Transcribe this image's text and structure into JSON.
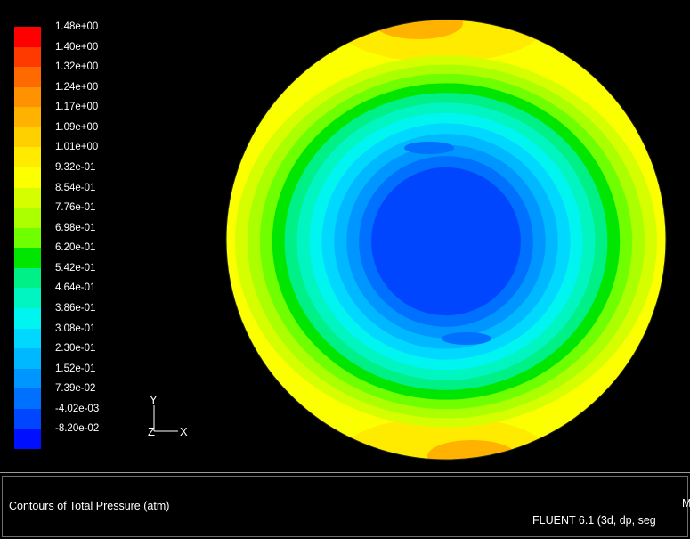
{
  "legend": {
    "labels": [
      "1.48e+00",
      "1.40e+00",
      "1.32e+00",
      "1.24e+00",
      "1.17e+00",
      "1.09e+00",
      "1.01e+00",
      "9.32e-01",
      "8.54e-01",
      "7.76e-01",
      "6.98e-01",
      "6.20e-01",
      "5.42e-01",
      "4.64e-01",
      "3.86e-01",
      "3.08e-01",
      "2.30e-01",
      "1.52e-01",
      "7.39e-02",
      "-4.02e-03",
      "-8.20e-02"
    ],
    "colors": [
      "#ff0000",
      "#ff3a00",
      "#ff6a00",
      "#ff9200",
      "#ffb300",
      "#ffd000",
      "#ffeb00",
      "#fbff00",
      "#d5ff00",
      "#acff00",
      "#70ff00",
      "#00e600",
      "#00f088",
      "#00f5c0",
      "#00f5f0",
      "#00d8ff",
      "#00b8ff",
      "#0096ff",
      "#0070ff",
      "#0046ff",
      "#0010ff"
    ]
  },
  "axes": {
    "y": "Y",
    "z": "Z",
    "x": "X"
  },
  "title": "Contours of Total Pressure (atm)",
  "solver": "FLUENT 6.1 (3d, dp, seg",
  "date_fragment": "M"
}
